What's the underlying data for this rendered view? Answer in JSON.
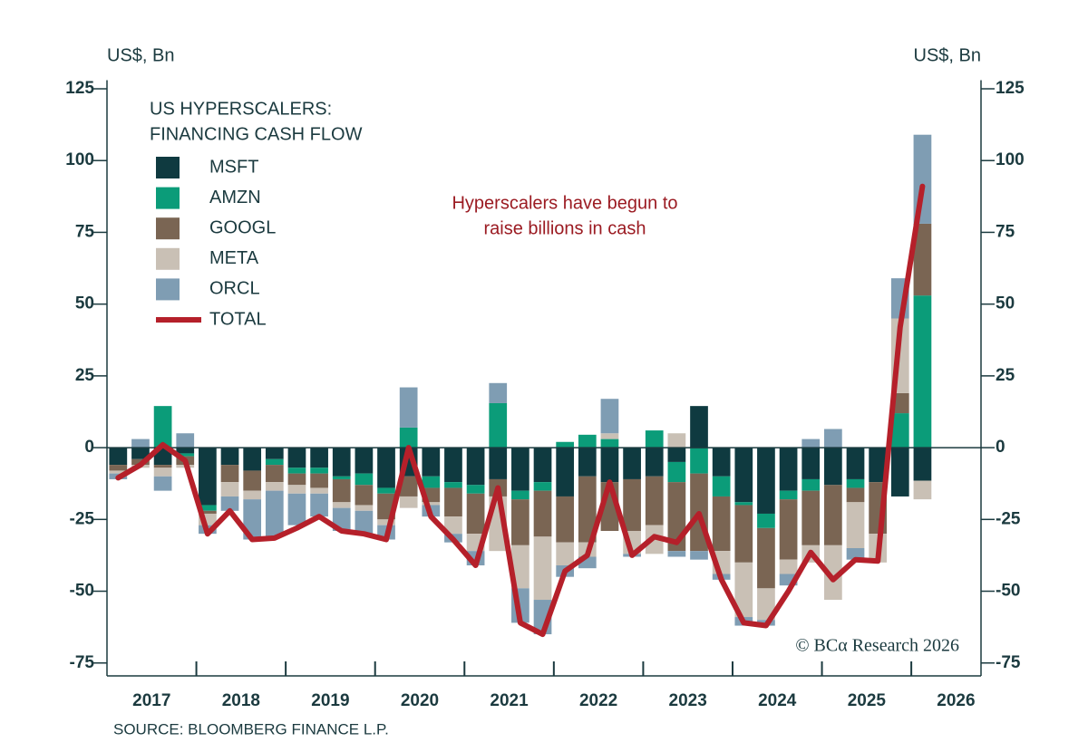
{
  "chart_data": {
    "type": "bar",
    "title_lines": [
      "US HYPERSCALERS:",
      "FINANCING CASH FLOW"
    ],
    "ylabel": "US$, Bn",
    "y2label": "US$, Bn",
    "annotation_lines": [
      "Hyperscalers have begun to",
      "raise billions in cash"
    ],
    "source": "SOURCE: BLOOMBERG FINANCE L.P.",
    "copyright": "© BCα Research 2026",
    "stacked": true,
    "x": [
      2017.125,
      2017.375,
      2017.625,
      2017.875,
      2018.125,
      2018.375,
      2018.625,
      2018.875,
      2019.125,
      2019.375,
      2019.625,
      2019.875,
      2020.125,
      2020.375,
      2020.625,
      2020.875,
      2021.125,
      2021.375,
      2021.625,
      2021.875,
      2022.125,
      2022.375,
      2022.625,
      2022.875,
      2023.125,
      2023.375,
      2023.625,
      2023.875,
      2024.125,
      2024.375,
      2024.625,
      2024.875,
      2025.125,
      2025.375,
      2025.625,
      2025.875,
      2026.125
    ],
    "xlim": [
      2017,
      2026.78
    ],
    "xticks": [
      2018,
      2019,
      2020,
      2021,
      2022,
      2023,
      2024,
      2025,
      2026
    ],
    "xtick_labels": [
      {
        "value": 2017.5,
        "label": "2017"
      },
      {
        "value": 2018.5,
        "label": "2018"
      },
      {
        "value": 2019.5,
        "label": "2019"
      },
      {
        "value": 2020.5,
        "label": "2020"
      },
      {
        "value": 2021.5,
        "label": "2021"
      },
      {
        "value": 2022.5,
        "label": "2022"
      },
      {
        "value": 2023.5,
        "label": "2023"
      },
      {
        "value": 2024.5,
        "label": "2024"
      },
      {
        "value": 2025.5,
        "label": "2025"
      },
      {
        "value": 2026.5,
        "label": "2026"
      }
    ],
    "ylim": [
      -79.5,
      128
    ],
    "yticks": [
      125,
      100,
      75,
      50,
      25,
      0,
      -25,
      -50,
      -75
    ],
    "y2lim": [
      -79.5,
      128
    ],
    "y2ticks": [
      125,
      100,
      75,
      50,
      25,
      0,
      -25,
      -50,
      -75
    ],
    "series": [
      {
        "name": "MSFT",
        "color": "#0f3a40",
        "values": [
          -6,
          -4,
          -6,
          -2,
          -20,
          -6,
          -8,
          -4,
          -7,
          -7,
          -10,
          -9,
          -14,
          -10,
          -10,
          -12,
          -13,
          -11,
          -15,
          -12,
          -17,
          -10,
          -12,
          -11,
          -10,
          -5,
          14.5,
          -10,
          -19,
          -23,
          -15,
          -11,
          -13,
          -11,
          -12,
          -17,
          -11.5
        ]
      },
      {
        "name": "AMZN",
        "color": "#0b9c79",
        "values": [
          0,
          0,
          14.5,
          -1,
          -2,
          0,
          0,
          -2,
          -2,
          -2,
          -1,
          -4,
          -2,
          7,
          -4,
          -2,
          -3,
          15.5,
          -3,
          -3,
          2,
          4.5,
          3,
          0,
          6,
          -7,
          -9,
          -7,
          -1,
          -5,
          -3,
          -4,
          0,
          -3,
          0,
          12,
          53
        ]
      },
      {
        "name": "GOOGL",
        "color": "#7a6553",
        "values": [
          -2,
          -2,
          -1,
          -3,
          -1,
          -6,
          -7,
          -6,
          -4,
          -5,
          -8,
          -7,
          -9,
          -7,
          -5,
          -10,
          -14,
          -6,
          -16,
          -16,
          -16,
          -23,
          -17,
          -18,
          -17,
          -24,
          -27,
          -19,
          -20,
          -21,
          -21,
          -19,
          -21,
          -5,
          -18,
          7,
          25
        ]
      },
      {
        "name": "META",
        "color": "#c9c0b5",
        "values": [
          -1,
          -1,
          -3,
          -1,
          -4,
          -5,
          -3,
          -3,
          -3,
          -2,
          -2,
          -2,
          -2,
          -4,
          -1,
          -6,
          -6,
          -19,
          -15,
          -22,
          -8,
          -5,
          2,
          -8,
          -10,
          5,
          0,
          -8,
          -19,
          -11,
          -5,
          -6,
          -19,
          -16,
          -10,
          26,
          -6.5
        ]
      },
      {
        "name": "ORCL",
        "color": "#7f9db3",
        "values": [
          -2,
          3,
          -5,
          5,
          -3,
          -5,
          -14,
          -16,
          -11,
          -8,
          -8,
          -8,
          -5,
          14,
          -4,
          -3,
          -5,
          7,
          -12,
          -12,
          -4,
          -4,
          12,
          -1,
          0,
          -2,
          -3,
          -2,
          -3,
          -2,
          -4,
          3,
          6.5,
          -4,
          0,
          14,
          31
        ]
      },
      {
        "name": "TOTAL",
        "color": "#b5202a",
        "type": "line",
        "values": [
          -10.5,
          -6,
          1,
          -4.5,
          -30,
          -22,
          -32,
          -31.5,
          -28,
          -24,
          -29,
          -30,
          -32,
          0,
          -24,
          -32,
          -41,
          -14,
          -61,
          -65,
          -43,
          -37.5,
          -12,
          -37.5,
          -31,
          -33,
          -23,
          -46,
          -61,
          -62,
          -50,
          -36.5,
          -46,
          -39,
          -39.5,
          42,
          91
        ]
      }
    ]
  }
}
